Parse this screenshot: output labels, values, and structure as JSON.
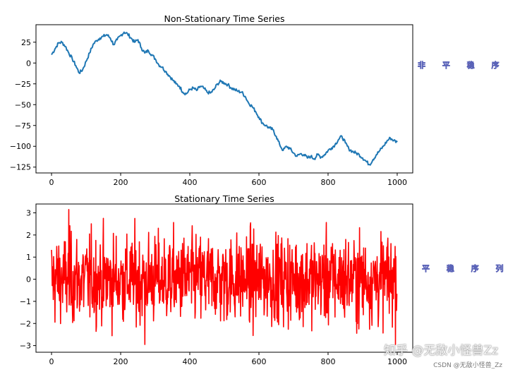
{
  "chart_data": [
    {
      "type": "line",
      "title": "Non-Stationary Time Series",
      "xlabel": "",
      "ylabel": "",
      "xlim": [
        -45,
        1045
      ],
      "ylim": [
        -132,
        46
      ],
      "xticks": [
        0,
        200,
        400,
        600,
        800,
        1000
      ],
      "yticks": [
        -125,
        -100,
        -75,
        -50,
        -25,
        0,
        25
      ],
      "color": "#1f77b4",
      "side_label": "非 平 稳 序 列",
      "series": [
        {
          "x": [
            0,
            10,
            20,
            30,
            40,
            50,
            60,
            70,
            80,
            90,
            100,
            110,
            120,
            130,
            140,
            150,
            160,
            170,
            180,
            190,
            200,
            210,
            220,
            230,
            240,
            250,
            260,
            270,
            280,
            290,
            300,
            310,
            320,
            330,
            340,
            350,
            360,
            370,
            380,
            390,
            400,
            410,
            420,
            430,
            440,
            450,
            460,
            470,
            480,
            490,
            500,
            510,
            520,
            530,
            540,
            550,
            560,
            570,
            580,
            590,
            600,
            610,
            620,
            630,
            640,
            650,
            660,
            670,
            680,
            690,
            700,
            710,
            720,
            730,
            740,
            750,
            760,
            770,
            780,
            790,
            800,
            810,
            820,
            830,
            840,
            850,
            860,
            870,
            880,
            890,
            900,
            910,
            920,
            930,
            940,
            950,
            960,
            970,
            980,
            990,
            1000
          ],
          "values": [
            10,
            17,
            24,
            25,
            20,
            12,
            5,
            -3,
            -12,
            -8,
            2,
            12,
            22,
            27,
            30,
            32,
            34,
            30,
            22,
            28,
            33,
            37,
            35,
            30,
            25,
            28,
            18,
            12,
            15,
            10,
            5,
            -2,
            -5,
            -10,
            -15,
            -20,
            -25,
            -28,
            -35,
            -37,
            -32,
            -30,
            -33,
            -28,
            -30,
            -35,
            -36,
            -32,
            -25,
            -22,
            -24,
            -26,
            -30,
            -32,
            -34,
            -35,
            -40,
            -48,
            -52,
            -58,
            -65,
            -72,
            -75,
            -78,
            -80,
            -88,
            -98,
            -105,
            -100,
            -103,
            -108,
            -112,
            -109,
            -110,
            -114,
            -112,
            -115,
            -110,
            -113,
            -110,
            -105,
            -102,
            -98,
            -92,
            -88,
            -96,
            -103,
            -106,
            -108,
            -110,
            -114,
            -118,
            -122,
            -116,
            -110,
            -105,
            -100,
            -94,
            -90,
            -93,
            -95
          ]
        }
      ]
    },
    {
      "type": "line",
      "title": "Stationary Time Series",
      "xlabel": "",
      "ylabel": "",
      "xlim": [
        -45,
        1045
      ],
      "ylim": [
        -3.3,
        3.4
      ],
      "xticks": [
        0,
        200,
        400,
        600,
        800,
        1000
      ],
      "yticks": [
        -3,
        -2,
        -1,
        0,
        1,
        2,
        3
      ],
      "color": "#ff0000",
      "side_label": "平 稳 序 列",
      "series": [
        {
          "n": 1000,
          "mean": 0,
          "std": 1,
          "min": -2.95,
          "max": 3.15
        }
      ]
    }
  ],
  "watermark": {
    "main": "知乎 @无敌小怪兽Zz",
    "sub": "CSDN @无敌小怪兽_Zz"
  }
}
